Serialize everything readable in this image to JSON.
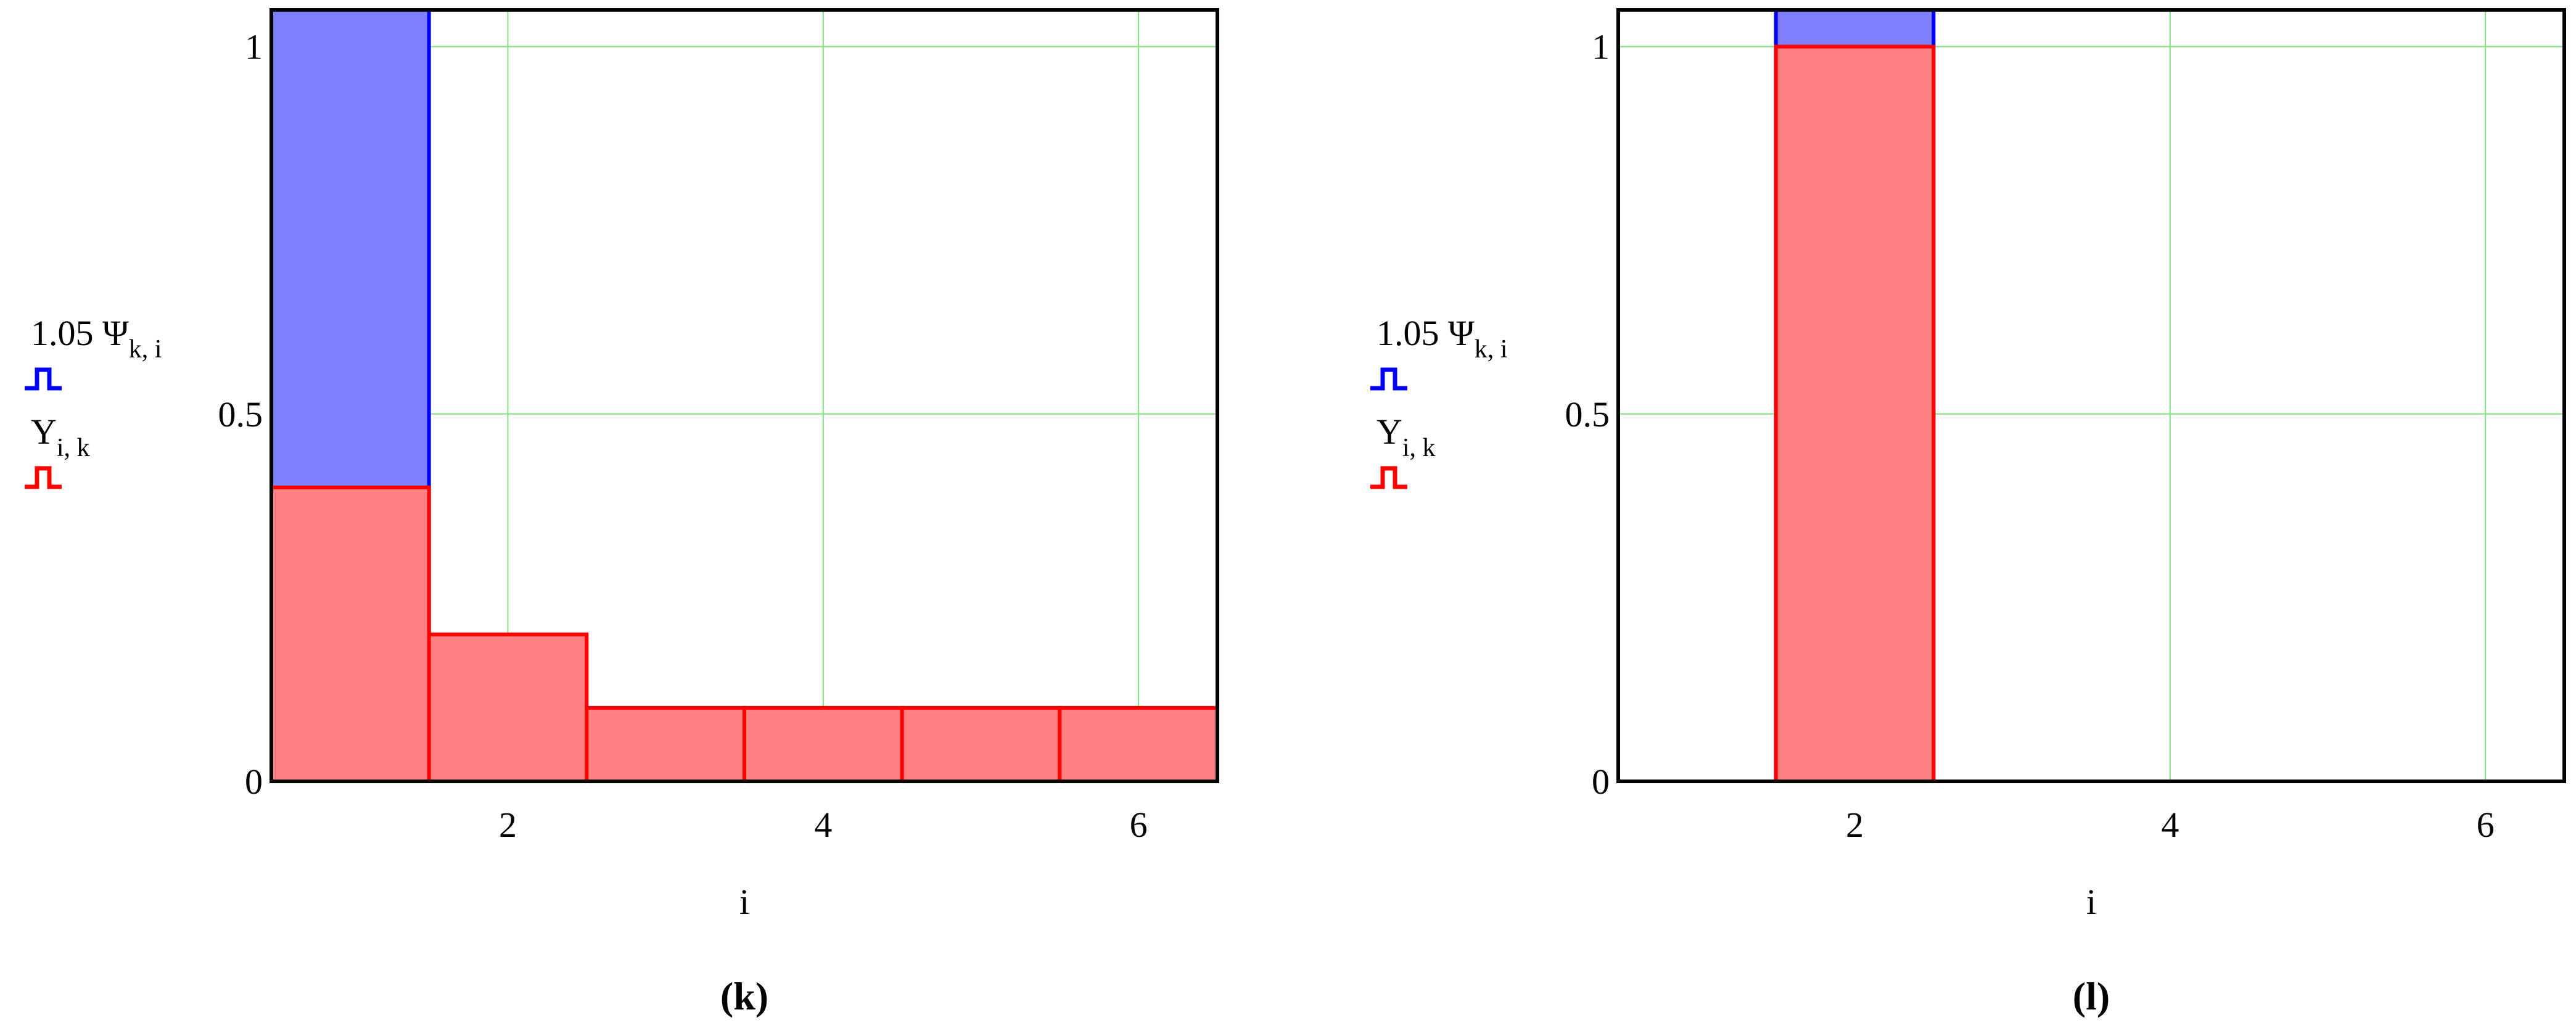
{
  "chart_data": [
    {
      "type": "bar",
      "caption": "(k)",
      "x_label": "i",
      "x": [
        1,
        2,
        3,
        4,
        5,
        6
      ],
      "series": [
        {
          "name": "1.05 Ψ",
          "subscript": "k, i",
          "color": "#0000ff",
          "fill": "#8080ff",
          "values": [
            1.05,
            0,
            0,
            0,
            0,
            0
          ]
        },
        {
          "name": "Y",
          "subscript": "i, k",
          "color": "#ff0000",
          "fill": "#ff8080",
          "values": [
            0.4,
            0.2,
            0.1,
            0.1,
            0.1,
            0.1
          ]
        }
      ],
      "xlim": [
        0.5,
        6.5
      ],
      "xticks": [
        2,
        4,
        6
      ],
      "ylim": [
        0,
        1.05
      ],
      "yticks": [
        0,
        0.5,
        1
      ],
      "grid": true
    },
    {
      "type": "bar",
      "caption": "(l)",
      "x_label": "i",
      "x": [
        1,
        2,
        3,
        4,
        5,
        6
      ],
      "series": [
        {
          "name": "1.05 Ψ",
          "subscript": "k, i",
          "color": "#0000ff",
          "fill": "#8080ff",
          "values": [
            0,
            1.05,
            0,
            0,
            0,
            0
          ]
        },
        {
          "name": "Y",
          "subscript": "i, k",
          "color": "#ff0000",
          "fill": "#ff8080",
          "values": [
            0,
            1,
            0,
            0,
            0,
            0
          ]
        }
      ],
      "xlim": [
        0.5,
        6.5
      ],
      "xticks": [
        2,
        4,
        6
      ],
      "ylim": [
        0,
        1.05
      ],
      "yticks": [
        0,
        0.5,
        1
      ],
      "grid": true
    }
  ]
}
